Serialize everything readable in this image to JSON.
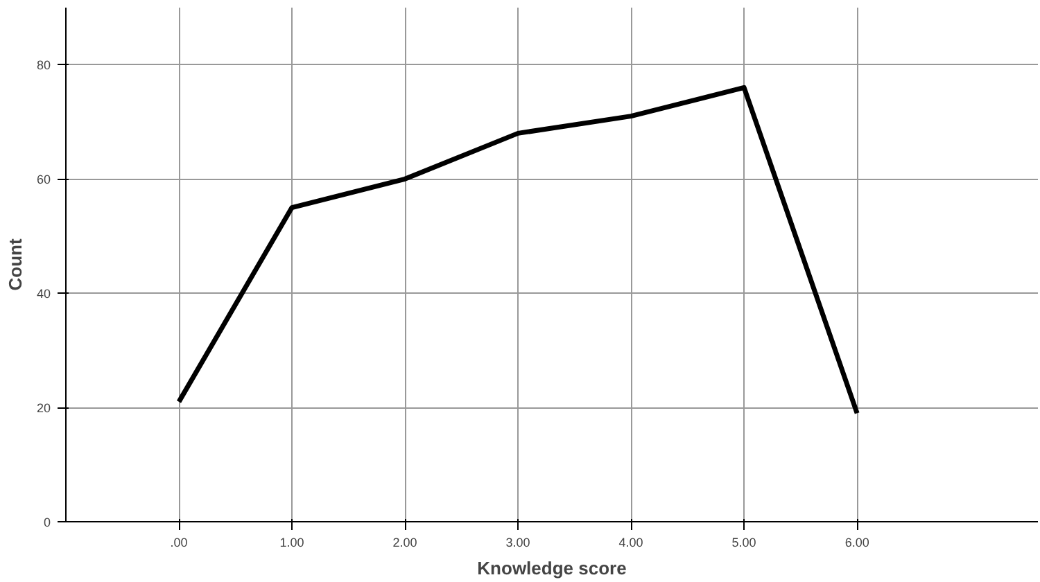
{
  "chart_data": {
    "type": "line",
    "xlabel": "Knowledge score",
    "ylabel": "Count",
    "x": [
      0,
      1,
      2,
      3,
      4,
      5,
      6
    ],
    "values": [
      21,
      55,
      60,
      68,
      71,
      76,
      19
    ],
    "color": "#000000",
    "line_style": "solid",
    "marker": "none",
    "xlim": [
      -1,
      7.6
    ],
    "ylim": [
      0,
      90
    ],
    "xticks": [
      {
        "value": 0,
        "label": ".00"
      },
      {
        "value": 1,
        "label": "1.00"
      },
      {
        "value": 2,
        "label": "2.00"
      },
      {
        "value": 3,
        "label": "3.00"
      },
      {
        "value": 4,
        "label": "4.00"
      },
      {
        "value": 5,
        "label": "5.00"
      },
      {
        "value": 6,
        "label": "6.00"
      }
    ],
    "yticks": [
      0,
      20,
      40,
      60,
      80
    ],
    "grid": true
  }
}
